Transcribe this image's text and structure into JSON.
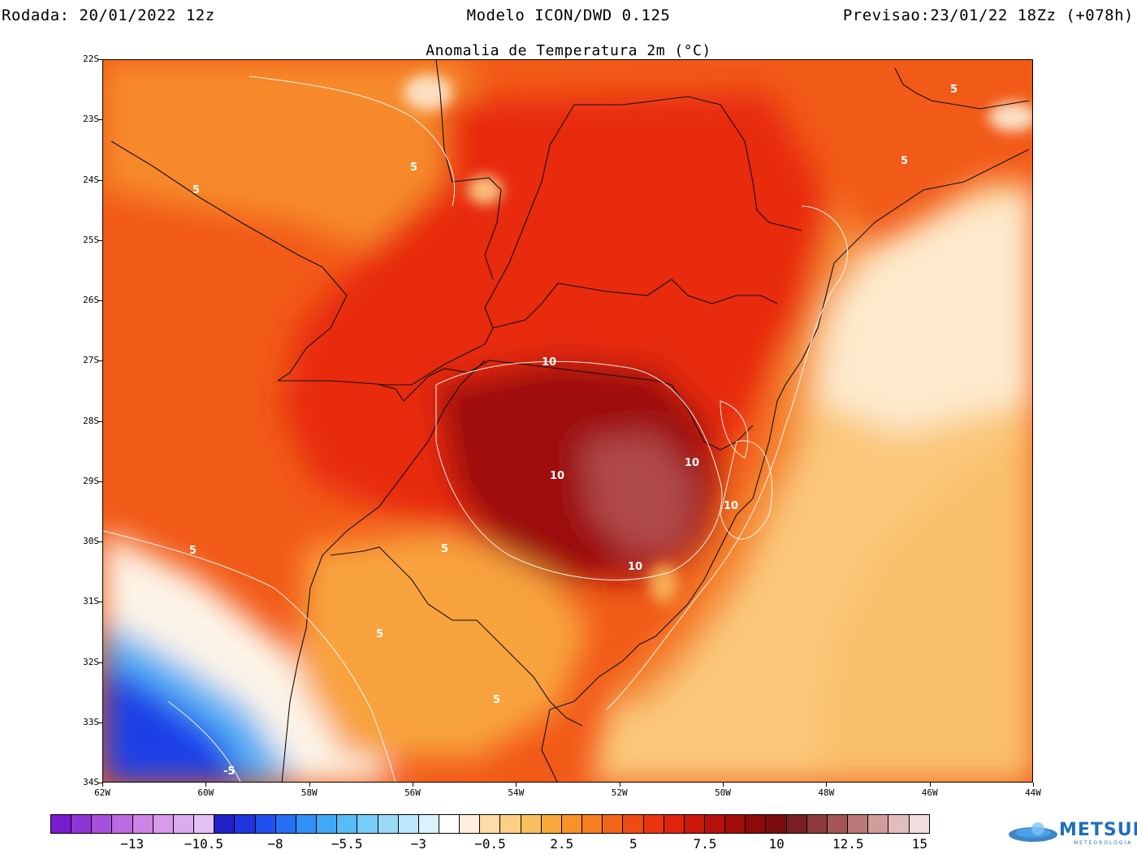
{
  "header": {
    "run": "Rodada: 20/01/2022 12z",
    "model": "Modelo ICON/DWD 0.125",
    "forecast": "Previsao:23/01/22 18Zz (+078h)"
  },
  "map": {
    "title": "Anomalia de Temperatura 2m (°C)",
    "lat_labels": [
      "22S",
      "23S",
      "24S",
      "25S",
      "26S",
      "27S",
      "28S",
      "29S",
      "30S",
      "31S",
      "32S",
      "33S",
      "34S"
    ],
    "lon_labels": [
      "62W",
      "60W",
      "58W",
      "56W",
      "54W",
      "52W",
      "50W",
      "48W",
      "46W",
      "44W"
    ],
    "contour_labels": [
      "5",
      "5",
      "5",
      "5",
      "5",
      "5",
      "5",
      "5",
      "10",
      "10",
      "10",
      "10",
      "10",
      "-5"
    ]
  },
  "colorbar": {
    "labels": [
      "-13",
      "-10.5",
      "-8",
      "-5.5",
      "-3",
      "-0.5",
      "2.5",
      "5",
      "7.5",
      "10",
      "12.5",
      "15"
    ],
    "colors": [
      "#7a1ad0",
      "#8f34d8",
      "#a84fdc",
      "#bd6ae2",
      "#cc84e6",
      "#d89aea",
      "#dcaaf0",
      "#e6c0f5",
      "#2020c8",
      "#1f35e0",
      "#2050f0",
      "#2670f5",
      "#3090f7",
      "#40a8f8",
      "#58bcf8",
      "#78cdf8",
      "#9ad9f8",
      "#bde6fa",
      "#dbf1fc",
      "#ffffff",
      "#fef0dc",
      "#fddcaa",
      "#fccf85",
      "#fbbe5e",
      "#f9a83a",
      "#f8922a",
      "#f67d21",
      "#f4641a",
      "#f04a14",
      "#ea3410",
      "#e0230d",
      "#cc150b",
      "#b8100a",
      "#a40d0a",
      "#8e0a0a",
      "#7a0c0c",
      "#7a2020",
      "#8e3a3a",
      "#a45656",
      "#bb7878",
      "#d09c9c",
      "#e3bcbc",
      "#f2dcdc"
    ],
    "colors_note": ""
  },
  "logo": {
    "name": "METSUL",
    "sub": "METEOROLOGIA"
  }
}
